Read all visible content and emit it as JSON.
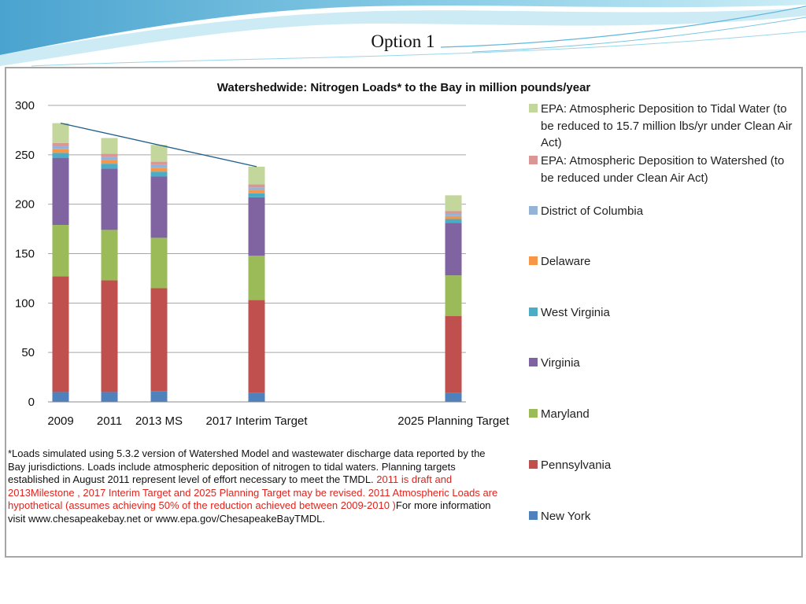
{
  "slide": {
    "title": "Option 1"
  },
  "footnote": {
    "black1": "*Loads simulated using 5.3.2 version of Watershed Model and wastewater discharge data reported by the Bay jurisdictions.  Loads include atmospheric deposition of nitrogen to tidal waters. Planning targets established in August 2011 represent level of effort necessary to meet the TMDL. ",
    "red": " 2011 is draft and 2013Milestone , 2017 Interim Target and 2025 Planning Target may be revised. 2011 Atmospheric Loads are hypothetical (assumes achieving 50% of the reduction achieved between 2009-2010 )",
    "black2": "For more information visit www.chesapeakebay.net or www.epa.gov/ChesapeakeBayTMDL."
  },
  "chart_data": {
    "type": "bar",
    "stacked": true,
    "title": "Watershedwide: Nitrogen Loads* to the Bay in million pounds/year",
    "xlabel": "",
    "ylabel": "",
    "ylim": [
      0,
      300
    ],
    "yticks": [
      0,
      50,
      100,
      150,
      200,
      250,
      300
    ],
    "grid": true,
    "legend_position": "right",
    "categories": [
      "2009",
      "2011",
      "2013 MS",
      "2017 Interim Target",
      "2025 Planning Target"
    ],
    "series": [
      {
        "name": "New York",
        "color": "#4f81bd",
        "values": [
          10,
          10,
          11,
          9,
          9
        ]
      },
      {
        "name": "Pennsylvania",
        "color": "#c0504d",
        "values": [
          117,
          113,
          104,
          94,
          78
        ]
      },
      {
        "name": "Maryland",
        "color": "#9bbb59",
        "values": [
          52,
          51,
          51,
          45,
          41
        ]
      },
      {
        "name": "Virginia",
        "color": "#8064a2",
        "values": [
          68,
          62,
          62,
          59,
          53
        ]
      },
      {
        "name": "West Virginia",
        "color": "#4bacc6",
        "values": [
          5,
          5,
          5,
          4,
          4
        ]
      },
      {
        "name": "Delaware",
        "color": "#f79646",
        "values": [
          4,
          4,
          4,
          3,
          3
        ]
      },
      {
        "name": "District of Columbia",
        "color": "#95b3d7",
        "values": [
          3,
          3,
          3,
          3,
          3
        ]
      },
      {
        "name": "EPA: Atmospheric Deposition to Watershed (to be reduced under Clean Air Act)",
        "color": "#d99694",
        "values": [
          3,
          3,
          3,
          3,
          2
        ]
      },
      {
        "name": "EPA: Atmospheric Deposition to Tidal Water (to be reduced to 15.7 million lbs/yr under Clean Air Act)",
        "color": "#c3d69b",
        "values": [
          20,
          16,
          17,
          18,
          16
        ]
      }
    ],
    "trend_line": {
      "from": {
        "category": "2009",
        "y": 282
      },
      "to": {
        "category": "2017 Interim Target",
        "y": 238
      }
    }
  }
}
